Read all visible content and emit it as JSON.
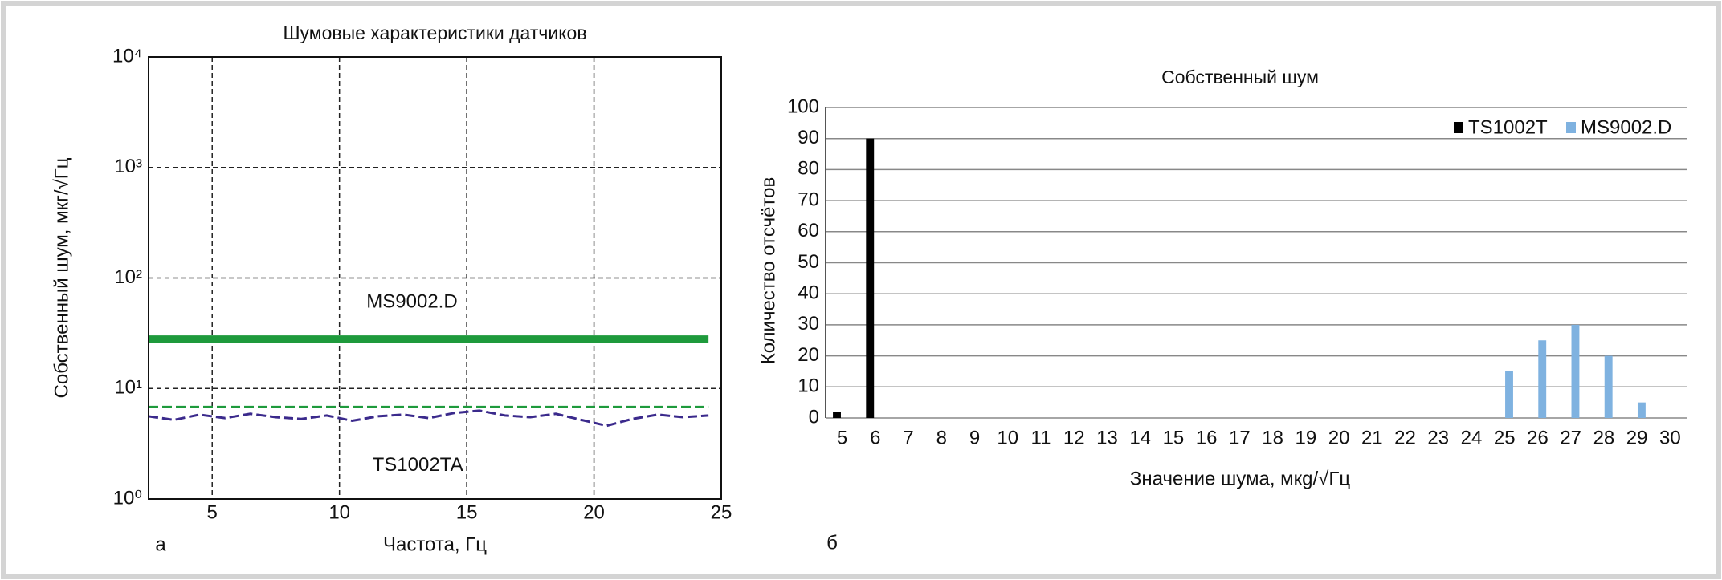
{
  "chart_data": [
    {
      "type": "line",
      "title": "Шумовые характеристики датчиков",
      "xlabel": "Частота, Гц",
      "ylabel": "Собственный шум, мкг/√Гц",
      "panel": "а",
      "log_y": true,
      "grid": true,
      "xlim": [
        2.5,
        25
      ],
      "xticks": [
        5,
        10,
        15,
        20,
        25
      ],
      "ylim": [
        1,
        10000
      ],
      "yticks": [
        {
          "value": 1,
          "label": "10⁰"
        },
        {
          "value": 10,
          "label": "10¹"
        },
        {
          "value": 100,
          "label": "10²"
        },
        {
          "value": 1000,
          "label": "10³"
        },
        {
          "value": 10000,
          "label": "10⁴"
        }
      ],
      "annotations": [
        {
          "text": "MS9002.D",
          "color": "#1e9a3c"
        },
        {
          "text": "TS1002TA",
          "color": "#3b2a8c"
        }
      ],
      "series": [
        {
          "color": "#1e9a3c",
          "x": [
            2.5,
            24.5
          ],
          "values": [
            28,
            28
          ]
        },
        {
          "color": "#1e9a3c",
          "dash": true,
          "x": [
            2.5,
            24.5
          ],
          "values": [
            6.8,
            6.8
          ]
        },
        {
          "color": "#3b2a8c",
          "dash": true,
          "x": [
            2.5,
            3.5,
            4.5,
            5.5,
            6.5,
            7.5,
            8.5,
            9.5,
            10.5,
            11.5,
            12.5,
            13.5,
            14.5,
            15.5,
            16.5,
            17.5,
            18.5,
            19.5,
            20.5,
            21.5,
            22.5,
            23.5,
            24.5
          ],
          "values": [
            5.6,
            5.2,
            5.8,
            5.4,
            5.9,
            5.5,
            5.3,
            5.7,
            5.1,
            5.6,
            5.8,
            5.4,
            6.0,
            6.3,
            5.7,
            5.5,
            5.9,
            5.2,
            4.6,
            5.3,
            5.8,
            5.5,
            5.7
          ]
        }
      ]
    },
    {
      "type": "bar",
      "title": "Собственный шум",
      "xlabel": "Значение шума, мкg/√Гц",
      "ylabel": "Количество отсчётов",
      "panel": "б",
      "grid": true,
      "legend": "upper right",
      "categories": [
        5,
        6,
        7,
        8,
        9,
        10,
        11,
        12,
        13,
        14,
        15,
        16,
        17,
        18,
        19,
        20,
        21,
        22,
        23,
        24,
        25,
        26,
        27,
        28,
        29,
        30
      ],
      "ylim": [
        0,
        100
      ],
      "yticks": [
        0,
        10,
        20,
        30,
        40,
        50,
        60,
        70,
        80,
        90,
        100
      ],
      "series": [
        {
          "name": "TS1002T",
          "color": "#000000",
          "values": [
            2,
            90,
            0,
            0,
            0,
            0,
            0,
            0,
            0,
            0,
            0,
            0,
            0,
            0,
            0,
            0,
            0,
            0,
            0,
            0,
            0,
            0,
            0,
            0,
            0,
            0
          ]
        },
        {
          "name": "MS9002.D",
          "color": "#7fb2e0",
          "values": [
            0,
            0,
            0,
            0,
            0,
            0,
            0,
            0,
            0,
            0,
            0,
            0,
            0,
            0,
            0,
            0,
            0,
            0,
            0,
            0,
            15,
            25,
            30,
            20,
            5,
            0
          ]
        }
      ]
    }
  ]
}
